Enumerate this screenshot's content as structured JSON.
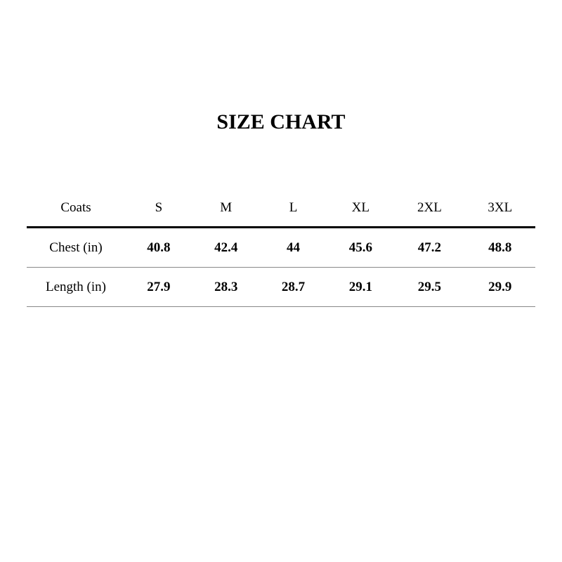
{
  "title": "SIZE CHART",
  "table": {
    "headers": [
      "Coats",
      "S",
      "M",
      "L",
      "XL",
      "2XL",
      "3XL"
    ],
    "rows": [
      {
        "label": "Chest (in)",
        "values": [
          "40.8",
          "42.4",
          "44",
          "45.6",
          "47.2",
          "48.8"
        ]
      },
      {
        "label": "Length (in)",
        "values": [
          "27.9",
          "28.3",
          "28.7",
          "29.1",
          "29.5",
          "29.9"
        ]
      }
    ]
  }
}
